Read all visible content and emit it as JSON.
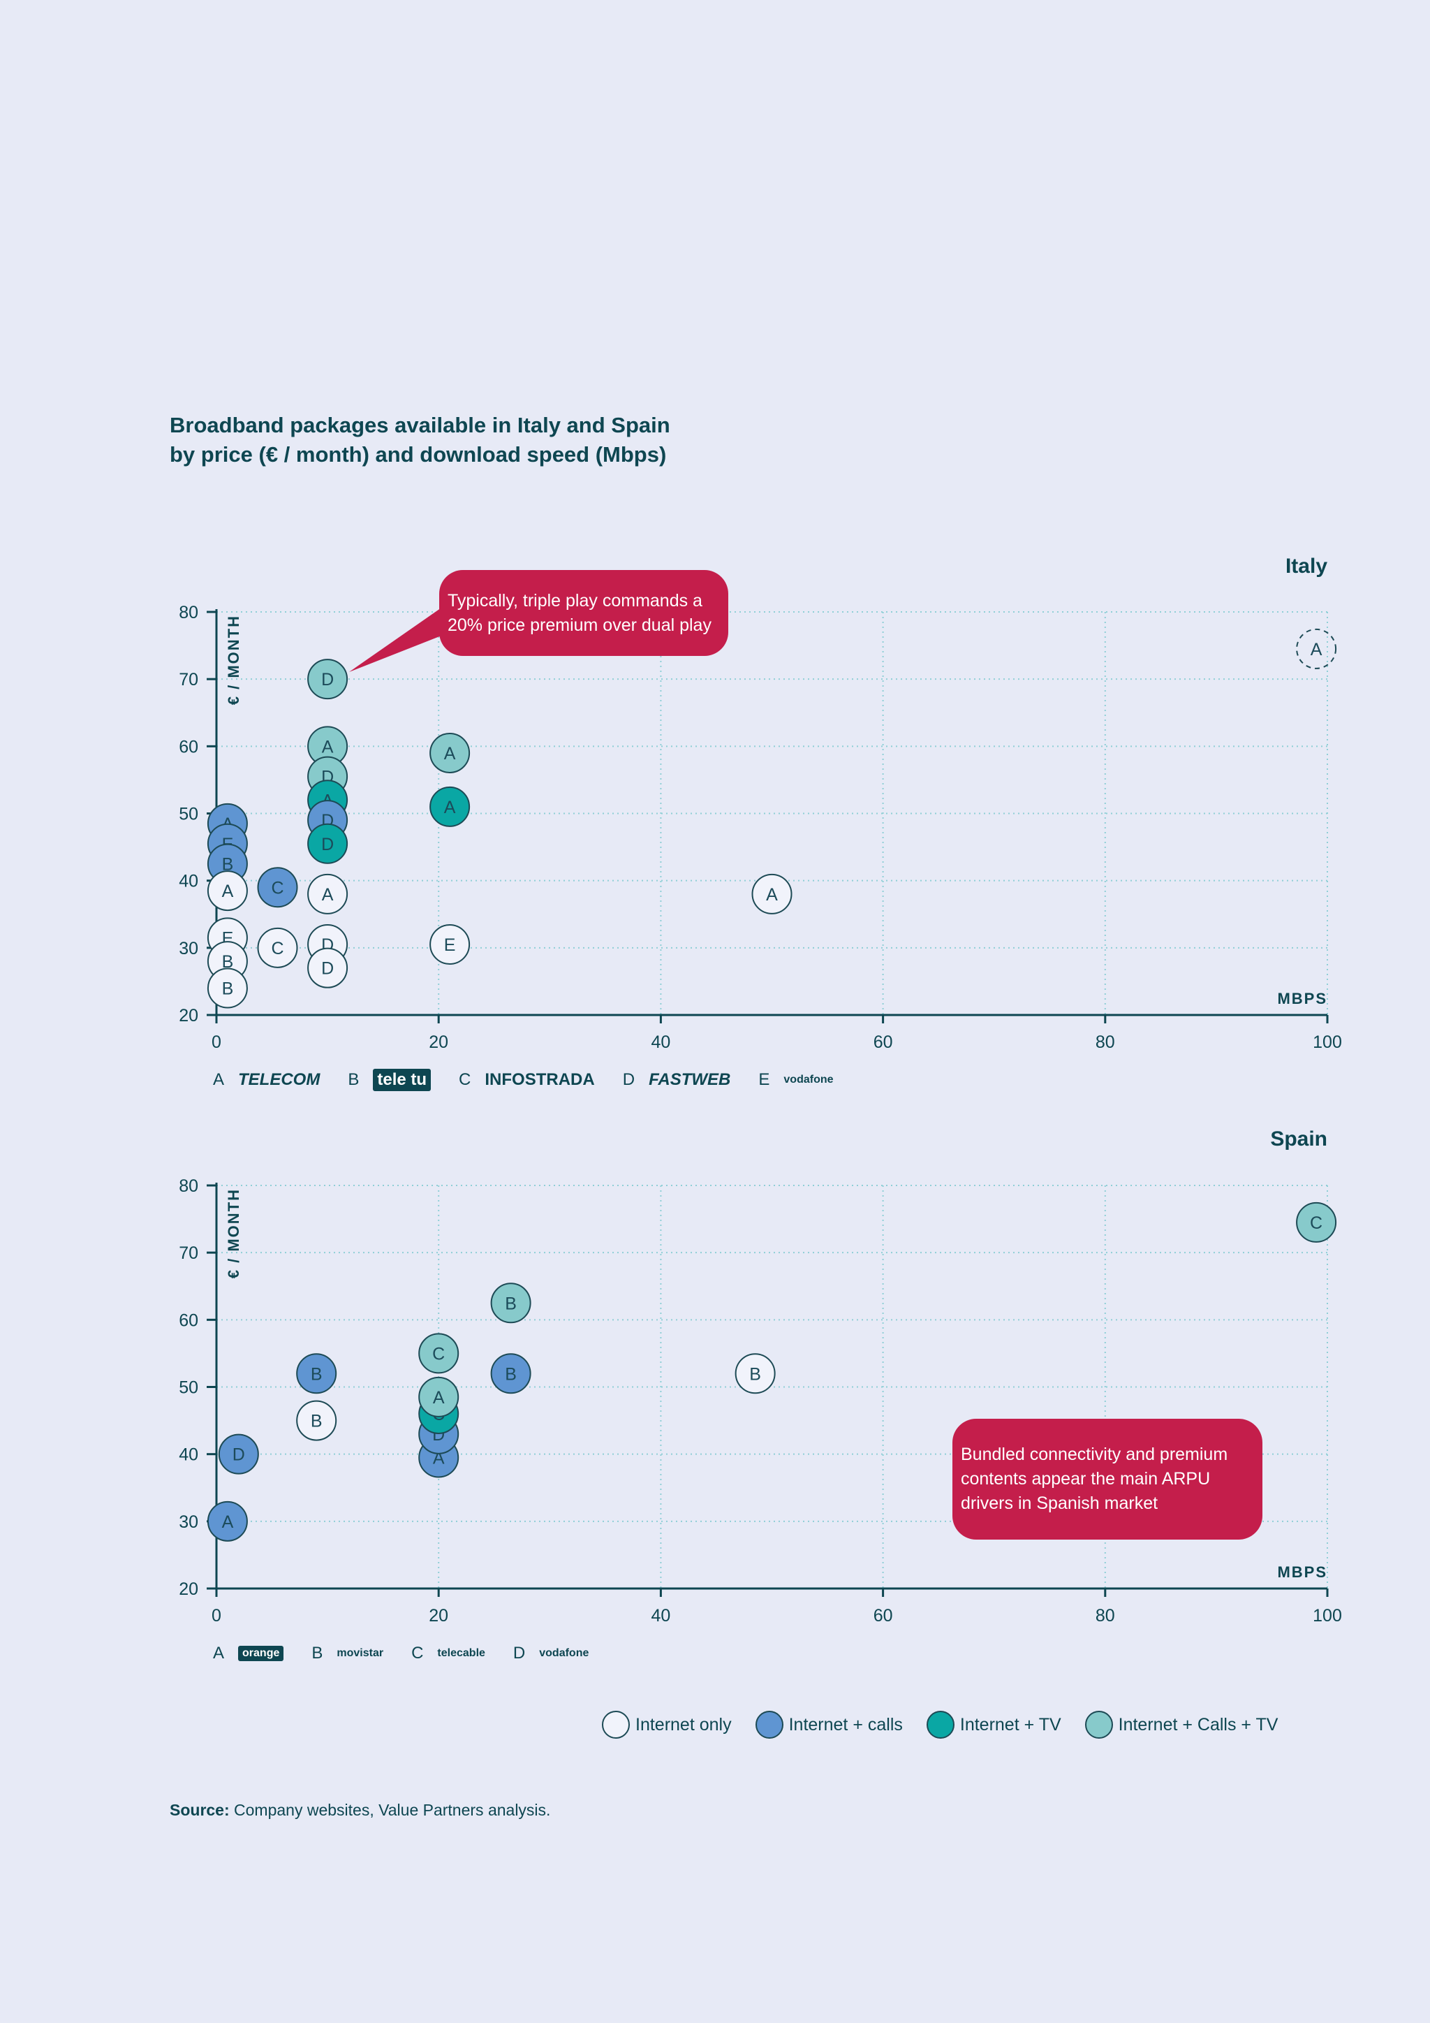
{
  "title_line1": "Broadband packages available in Italy and Spain",
  "title_line2": "by price (€ / month) and download speed (Mbps)",
  "colors": {
    "internet_only": "#f1f3fb",
    "internet_calls": "#5f95d2",
    "internet_tv": "#0aa7a4",
    "internet_calls_tv": "#87cacb",
    "accent": "#c41e4b",
    "grid": "#8fcfd6",
    "axis": "#0e4651"
  },
  "italy": {
    "title": "Italy",
    "note": "Typically, triple play commands a 20% price premium over dual play",
    "providers": [
      {
        "key": "A",
        "name": "TELECOM"
      },
      {
        "key": "B",
        "name": "tele tu"
      },
      {
        "key": "C",
        "name": "INFOSTRADA"
      },
      {
        "key": "D",
        "name": "FASTWEB"
      },
      {
        "key": "E",
        "name": "vodafone"
      }
    ]
  },
  "spain": {
    "title": "Spain",
    "note": "Bundled connectivity and premium contents appear the main ARPU drivers in Spanish market",
    "providers": [
      {
        "key": "A",
        "name": "orange"
      },
      {
        "key": "B",
        "name": "movistar"
      },
      {
        "key": "C",
        "name": "telecable"
      },
      {
        "key": "D",
        "name": "vodafone"
      }
    ]
  },
  "legend": {
    "internet_only": "Internet only",
    "internet_calls": "Internet + calls",
    "internet_tv": "Internet + TV",
    "internet_calls_tv": "Internet + Calls + TV"
  },
  "source_label": "Source:",
  "source_text": "Company websites, Value Partners analysis.",
  "chart_data": [
    {
      "type": "scatter",
      "title": "Italy",
      "xlabel": "MBPS",
      "ylabel": "€ / MONTH",
      "xlim": [
        0,
        100
      ],
      "ylim": [
        20,
        80
      ],
      "xticks": [
        0,
        20,
        40,
        60,
        80,
        100
      ],
      "yticks": [
        20,
        30,
        40,
        50,
        60,
        70,
        80
      ],
      "grid": true,
      "points": [
        {
          "label": "A",
          "x": 99,
          "y": 74.5,
          "cat": "dashed"
        },
        {
          "label": "D",
          "x": 10,
          "y": 70,
          "cat": "internet_calls_tv"
        },
        {
          "label": "A",
          "x": 10,
          "y": 60,
          "cat": "internet_calls_tv"
        },
        {
          "label": "D",
          "x": 10,
          "y": 55.5,
          "cat": "internet_calls_tv"
        },
        {
          "label": "A",
          "x": 10,
          "y": 52,
          "cat": "internet_tv"
        },
        {
          "label": "D",
          "x": 10,
          "y": 49,
          "cat": "internet_calls"
        },
        {
          "label": "D",
          "x": 10,
          "y": 45.5,
          "cat": "internet_tv"
        },
        {
          "label": "A",
          "x": 10,
          "y": 38,
          "cat": "internet_only"
        },
        {
          "label": "D",
          "x": 10,
          "y": 30.5,
          "cat": "internet_only"
        },
        {
          "label": "D",
          "x": 10,
          "y": 27,
          "cat": "internet_only"
        },
        {
          "label": "A",
          "x": 21,
          "y": 59,
          "cat": "internet_calls_tv"
        },
        {
          "label": "A",
          "x": 21,
          "y": 51,
          "cat": "internet_tv"
        },
        {
          "label": "E",
          "x": 21,
          "y": 30.5,
          "cat": "internet_only"
        },
        {
          "label": "A",
          "x": 50,
          "y": 38,
          "cat": "internet_only"
        },
        {
          "label": "A",
          "x": 1,
          "y": 48.5,
          "cat": "internet_calls"
        },
        {
          "label": "E",
          "x": 1,
          "y": 45.5,
          "cat": "internet_calls"
        },
        {
          "label": "B",
          "x": 1,
          "y": 42.5,
          "cat": "internet_calls"
        },
        {
          "label": "A",
          "x": 1,
          "y": 38.5,
          "cat": "internet_only"
        },
        {
          "label": "E",
          "x": 1,
          "y": 31.5,
          "cat": "internet_only"
        },
        {
          "label": "B",
          "x": 1,
          "y": 28,
          "cat": "internet_only"
        },
        {
          "label": "B",
          "x": 1,
          "y": 24,
          "cat": "internet_only"
        },
        {
          "label": "C",
          "x": 5.5,
          "y": 39,
          "cat": "internet_calls"
        },
        {
          "label": "C",
          "x": 5.5,
          "y": 30,
          "cat": "internet_only"
        }
      ]
    },
    {
      "type": "scatter",
      "title": "Spain",
      "xlabel": "MBPS",
      "ylabel": "€ / MONTH",
      "xlim": [
        0,
        100
      ],
      "ylim": [
        20,
        80
      ],
      "xticks": [
        0,
        20,
        40,
        60,
        80,
        100
      ],
      "yticks": [
        20,
        30,
        40,
        50,
        60,
        70,
        80
      ],
      "grid": true,
      "points": [
        {
          "label": "C",
          "x": 99,
          "y": 74.5,
          "cat": "internet_calls_tv"
        },
        {
          "label": "B",
          "x": 26.5,
          "y": 62.5,
          "cat": "internet_calls_tv"
        },
        {
          "label": "B",
          "x": 26.5,
          "y": 52,
          "cat": "internet_calls"
        },
        {
          "label": "B",
          "x": 48.5,
          "y": 52,
          "cat": "internet_only"
        },
        {
          "label": "B",
          "x": 9,
          "y": 52,
          "cat": "internet_calls"
        },
        {
          "label": "B",
          "x": 9,
          "y": 45,
          "cat": "internet_only"
        },
        {
          "label": "D",
          "x": 2,
          "y": 40,
          "cat": "internet_calls"
        },
        {
          "label": "A",
          "x": 1,
          "y": 30,
          "cat": "internet_calls"
        },
        {
          "label": "A",
          "x": 20,
          "y": 39.5,
          "cat": "internet_calls"
        },
        {
          "label": "D",
          "x": 20,
          "y": 43,
          "cat": "internet_calls"
        },
        {
          "label": "C",
          "x": 20,
          "y": 46,
          "cat": "internet_tv"
        },
        {
          "label": "A",
          "x": 20,
          "y": 48.5,
          "cat": "internet_calls_tv"
        },
        {
          "label": "C",
          "x": 20,
          "y": 55,
          "cat": "internet_calls_tv"
        }
      ]
    }
  ]
}
